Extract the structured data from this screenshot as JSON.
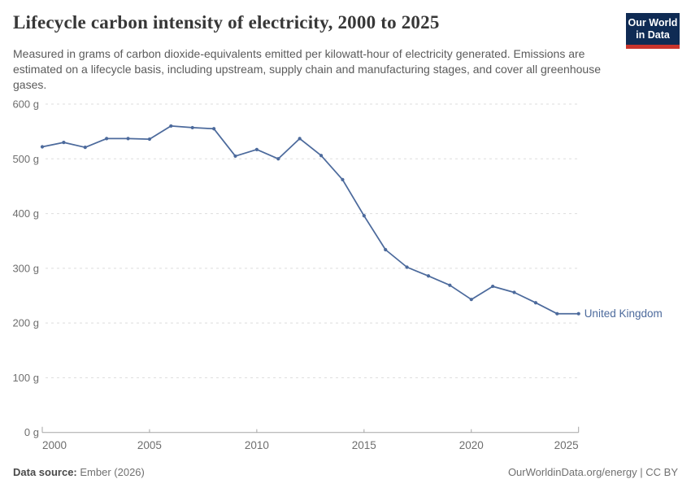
{
  "header": {
    "title": "Lifecycle carbon intensity of electricity, 2000 to 2025",
    "subtitle": "Measured in grams of carbon dioxide-equivalents emitted per kilowatt-hour of electricity generated. Emissions are estimated on a lifecycle basis, including upstream, supply chain and manufacturing stages, and cover all greenhouse gases.",
    "logo": {
      "line1": "Our World",
      "line2": "in Data",
      "bg_color": "#0f2b54",
      "bar_color": "#c9342c",
      "text_color": "#ffffff"
    }
  },
  "chart_data": {
    "type": "line",
    "title": "Lifecycle carbon intensity of electricity, 2000 to 2025",
    "xlabel": "",
    "ylabel": "",
    "xlim": [
      2000,
      2025
    ],
    "ylim": [
      0,
      600
    ],
    "x_ticks": [
      2000,
      2005,
      2010,
      2015,
      2020,
      2025
    ],
    "y_ticks": [
      0,
      100,
      200,
      300,
      400,
      500,
      600
    ],
    "y_tick_suffix": " g",
    "grid": "horizontal-dashed",
    "legend_position": "end-of-line-label",
    "series": [
      {
        "name": "United Kingdom",
        "color": "#4C6A9C",
        "x": [
          2000,
          2001,
          2002,
          2003,
          2004,
          2005,
          2006,
          2007,
          2008,
          2009,
          2010,
          2011,
          2012,
          2013,
          2014,
          2015,
          2016,
          2017,
          2018,
          2019,
          2020,
          2021,
          2022,
          2023,
          2024,
          2025
        ],
        "values": [
          522,
          530,
          521,
          537,
          537,
          536,
          560,
          557,
          555,
          505,
          517,
          500,
          537,
          506,
          462,
          396,
          334,
          302,
          286,
          269,
          243,
          267,
          256,
          237,
          217,
          217
        ]
      }
    ]
  },
  "footer": {
    "source_label": "Data source:",
    "source_value": "Ember (2026)",
    "credit": "OurWorldinData.org/energy | CC BY"
  },
  "colors": {
    "grid": "#dddddd",
    "axis": "#a5a5a5",
    "tick_text": "#6e6e6e",
    "title_text": "#373737",
    "subtitle_text": "#5b5b5b"
  }
}
